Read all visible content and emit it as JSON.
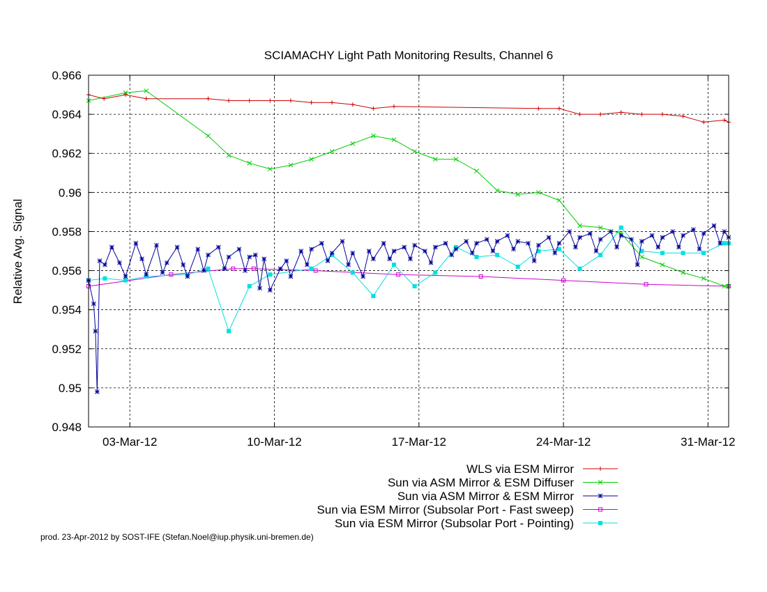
{
  "chart_data": {
    "type": "line",
    "title": "SCIAMACHY Light Path Monitoring Results, Channel 6",
    "ylabel": "Relative Avg. Signal",
    "xlabel": "",
    "xlim": [
      "2012-03-01T00:00",
      "2012-04-01T00:00"
    ],
    "ylim": [
      0.948,
      0.966
    ],
    "yticks": [
      0.948,
      0.95,
      0.952,
      0.954,
      0.956,
      0.958,
      0.96,
      0.962,
      0.964,
      0.966
    ],
    "ytick_labels": [
      "0.948",
      "0.95",
      "0.952",
      "0.954",
      "0.956",
      "0.958",
      "0.96",
      "0.962",
      "0.964",
      "0.966"
    ],
    "xticks": [
      "2012-03-03",
      "2012-03-10",
      "2012-03-17",
      "2012-03-24",
      "2012-03-31"
    ],
    "xtick_labels": [
      "03-Mar-12",
      "10-Mar-12",
      "17-Mar-12",
      "24-Mar-12",
      "31-Mar-12"
    ],
    "grid": true,
    "legend_position": "below plot, right-aligned",
    "series": [
      {
        "name": "WLS via ESM Mirror",
        "color": "#cc0000",
        "marker": "plus",
        "points": [
          [
            "2012-03-01T00:00",
            0.965
          ],
          [
            "2012-03-01T18:00",
            0.9648
          ],
          [
            "2012-03-02T19:00",
            0.965
          ],
          [
            "2012-03-03T19:00",
            0.9648
          ],
          [
            "2012-03-06T19:00",
            0.9648
          ],
          [
            "2012-03-07T19:00",
            0.9647
          ],
          [
            "2012-03-08T19:00",
            0.9647
          ],
          [
            "2012-03-09T19:00",
            0.9647
          ],
          [
            "2012-03-10T19:00",
            0.9647
          ],
          [
            "2012-03-11T19:00",
            0.9646
          ],
          [
            "2012-03-12T19:00",
            0.9646
          ],
          [
            "2012-03-13T19:00",
            0.9645
          ],
          [
            "2012-03-14T19:00",
            0.9643
          ],
          [
            "2012-03-15T19:00",
            0.9644
          ],
          [
            "2012-03-22T19:00",
            0.9643
          ],
          [
            "2012-03-23T19:00",
            0.9643
          ],
          [
            "2012-03-24T19:00",
            0.964
          ],
          [
            "2012-03-25T19:00",
            0.964
          ],
          [
            "2012-03-26T19:00",
            0.9641
          ],
          [
            "2012-03-27T19:00",
            0.964
          ],
          [
            "2012-03-28T19:00",
            0.964
          ],
          [
            "2012-03-29T19:00",
            0.9639
          ],
          [
            "2012-03-30T19:00",
            0.9636
          ],
          [
            "2012-03-31T19:00",
            0.9637
          ],
          [
            "2012-04-01T00:00",
            0.9636
          ]
        ]
      },
      {
        "name": "Sun via ASM Mirror & ESM Diffuser",
        "color": "#00cc00",
        "marker": "cross",
        "points": [
          [
            "2012-03-01T00:00",
            0.9647
          ],
          [
            "2012-03-02T19:00",
            0.9651
          ],
          [
            "2012-03-03T19:00",
            0.9652
          ],
          [
            "2012-03-06T19:00",
            0.9629
          ],
          [
            "2012-03-07T19:00",
            0.9619
          ],
          [
            "2012-03-08T19:00",
            0.9615
          ],
          [
            "2012-03-09T19:00",
            0.9612
          ],
          [
            "2012-03-10T19:00",
            0.9614
          ],
          [
            "2012-03-11T19:00",
            0.9617
          ],
          [
            "2012-03-12T19:00",
            0.9621
          ],
          [
            "2012-03-13T19:00",
            0.9625
          ],
          [
            "2012-03-14T19:00",
            0.9629
          ],
          [
            "2012-03-15T19:00",
            0.9627
          ],
          [
            "2012-03-16T19:00",
            0.9621
          ],
          [
            "2012-03-17T19:00",
            0.9617
          ],
          [
            "2012-03-18T19:00",
            0.9617
          ],
          [
            "2012-03-19T19:00",
            0.9611
          ],
          [
            "2012-03-20T19:00",
            0.9601
          ],
          [
            "2012-03-21T19:00",
            0.9599
          ],
          [
            "2012-03-22T19:00",
            0.96
          ],
          [
            "2012-03-23T19:00",
            0.9596
          ],
          [
            "2012-03-24T19:00",
            0.9583
          ],
          [
            "2012-03-25T19:00",
            0.9582
          ],
          [
            "2012-03-26T19:00",
            0.9579
          ],
          [
            "2012-03-27T19:00",
            0.9567
          ],
          [
            "2012-03-28T19:00",
            0.9563
          ],
          [
            "2012-03-29T19:00",
            0.9559
          ],
          [
            "2012-03-30T19:00",
            0.9556
          ],
          [
            "2012-03-31T19:00",
            0.9552
          ],
          [
            "2012-04-01T00:00",
            0.9552
          ]
        ]
      },
      {
        "name": "Sun via ASM Mirror & ESM Mirror",
        "color": "#000099",
        "marker": "star",
        "points": [
          [
            "2012-03-01T00:00",
            0.9555
          ],
          [
            "2012-03-01T06:00",
            0.9543
          ],
          [
            "2012-03-01T08:00",
            0.9529
          ],
          [
            "2012-03-01T10:00",
            0.9498
          ],
          [
            "2012-03-01T13:00",
            0.9565
          ],
          [
            "2012-03-01T19:00",
            0.9563
          ],
          [
            "2012-03-02T03:00",
            0.9572
          ],
          [
            "2012-03-02T12:00",
            0.9564
          ],
          [
            "2012-03-02T19:00",
            0.9557
          ],
          [
            "2012-03-03T07:00",
            0.9574
          ],
          [
            "2012-03-03T14:00",
            0.9566
          ],
          [
            "2012-03-03T19:00",
            0.9558
          ],
          [
            "2012-03-04T07:00",
            0.9573
          ],
          [
            "2012-03-04T14:00",
            0.9559
          ],
          [
            "2012-03-04T19:00",
            0.9564
          ],
          [
            "2012-03-05T07:00",
            0.9572
          ],
          [
            "2012-03-05T14:00",
            0.9563
          ],
          [
            "2012-03-05T19:00",
            0.9557
          ],
          [
            "2012-03-06T07:00",
            0.9571
          ],
          [
            "2012-03-06T14:00",
            0.956
          ],
          [
            "2012-03-06T19:00",
            0.9568
          ],
          [
            "2012-03-07T07:00",
            0.9572
          ],
          [
            "2012-03-07T14:00",
            0.9561
          ],
          [
            "2012-03-07T19:00",
            0.9567
          ],
          [
            "2012-03-08T07:00",
            0.9571
          ],
          [
            "2012-03-08T14:00",
            0.956
          ],
          [
            "2012-03-08T19:00",
            0.9567
          ],
          [
            "2012-03-09T02:00",
            0.9568
          ],
          [
            "2012-03-09T07:00",
            0.9551
          ],
          [
            "2012-03-09T12:00",
            0.9566
          ],
          [
            "2012-03-09T19:00",
            0.955
          ],
          [
            "2012-03-10T07:00",
            0.9561
          ],
          [
            "2012-03-10T14:00",
            0.9565
          ],
          [
            "2012-03-10T19:00",
            0.9557
          ],
          [
            "2012-03-11T07:00",
            0.957
          ],
          [
            "2012-03-11T14:00",
            0.9563
          ],
          [
            "2012-03-11T19:00",
            0.9571
          ],
          [
            "2012-03-12T07:00",
            0.9574
          ],
          [
            "2012-03-12T14:00",
            0.9565
          ],
          [
            "2012-03-12T19:00",
            0.9569
          ],
          [
            "2012-03-13T07:00",
            0.9575
          ],
          [
            "2012-03-13T14:00",
            0.9563
          ],
          [
            "2012-03-13T19:00",
            0.9569
          ],
          [
            "2012-03-14T07:00",
            0.9557
          ],
          [
            "2012-03-14T14:00",
            0.957
          ],
          [
            "2012-03-14T19:00",
            0.9566
          ],
          [
            "2012-03-15T07:00",
            0.9574
          ],
          [
            "2012-03-15T14:00",
            0.9566
          ],
          [
            "2012-03-15T19:00",
            0.957
          ],
          [
            "2012-03-16T07:00",
            0.9572
          ],
          [
            "2012-03-16T14:00",
            0.9566
          ],
          [
            "2012-03-16T19:00",
            0.9573
          ],
          [
            "2012-03-17T07:00",
            0.957
          ],
          [
            "2012-03-17T14:00",
            0.9564
          ],
          [
            "2012-03-17T19:00",
            0.9572
          ],
          [
            "2012-03-18T07:00",
            0.9574
          ],
          [
            "2012-03-18T14:00",
            0.9568
          ],
          [
            "2012-03-18T19:00",
            0.9571
          ],
          [
            "2012-03-19T07:00",
            0.9575
          ],
          [
            "2012-03-19T14:00",
            0.9569
          ],
          [
            "2012-03-19T19:00",
            0.9574
          ],
          [
            "2012-03-20T07:00",
            0.9576
          ],
          [
            "2012-03-20T14:00",
            0.957
          ],
          [
            "2012-03-20T19:00",
            0.9575
          ],
          [
            "2012-03-21T07:00",
            0.9578
          ],
          [
            "2012-03-21T14:00",
            0.9571
          ],
          [
            "2012-03-21T19:00",
            0.9575
          ],
          [
            "2012-03-22T07:00",
            0.9574
          ],
          [
            "2012-03-22T14:00",
            0.9565
          ],
          [
            "2012-03-22T19:00",
            0.9573
          ],
          [
            "2012-03-23T07:00",
            0.9577
          ],
          [
            "2012-03-23T14:00",
            0.9569
          ],
          [
            "2012-03-23T19:00",
            0.9574
          ],
          [
            "2012-03-24T07:00",
            0.958
          ],
          [
            "2012-03-24T14:00",
            0.9572
          ],
          [
            "2012-03-24T19:00",
            0.9577
          ],
          [
            "2012-03-25T07:00",
            0.9579
          ],
          [
            "2012-03-25T14:00",
            0.957
          ],
          [
            "2012-03-25T19:00",
            0.9576
          ],
          [
            "2012-03-26T07:00",
            0.958
          ],
          [
            "2012-03-26T14:00",
            0.9572
          ],
          [
            "2012-03-26T19:00",
            0.9578
          ],
          [
            "2012-03-27T07:00",
            0.9576
          ],
          [
            "2012-03-27T14:00",
            0.9563
          ],
          [
            "2012-03-27T19:00",
            0.9575
          ],
          [
            "2012-03-28T07:00",
            0.9578
          ],
          [
            "2012-03-28T14:00",
            0.9572
          ],
          [
            "2012-03-28T19:00",
            0.9577
          ],
          [
            "2012-03-29T07:00",
            0.958
          ],
          [
            "2012-03-29T14:00",
            0.9572
          ],
          [
            "2012-03-29T19:00",
            0.9578
          ],
          [
            "2012-03-30T07:00",
            0.9581
          ],
          [
            "2012-03-30T14:00",
            0.9571
          ],
          [
            "2012-03-30T19:00",
            0.9579
          ],
          [
            "2012-03-31T07:00",
            0.9583
          ],
          [
            "2012-03-31T14:00",
            0.9574
          ],
          [
            "2012-03-31T19:00",
            0.958
          ],
          [
            "2012-04-01T00:00",
            0.9577
          ]
        ]
      },
      {
        "name": "Sun via ESM Mirror (Subsolar Port - Fast sweep)",
        "color": "#cc00cc",
        "marker": "open-square",
        "points": [
          [
            "2012-03-01T00:00",
            0.9552
          ],
          [
            "2012-03-05T00:00",
            0.9558
          ],
          [
            "2012-03-08T00:00",
            0.9561
          ],
          [
            "2012-03-09T00:00",
            0.9561
          ],
          [
            "2012-03-12T00:00",
            0.956
          ],
          [
            "2012-03-16T00:00",
            0.9558
          ],
          [
            "2012-03-20T00:00",
            0.9557
          ],
          [
            "2012-03-24T00:00",
            0.9555
          ],
          [
            "2012-03-28T00:00",
            0.9553
          ],
          [
            "2012-04-01T00:00",
            0.9552
          ]
        ]
      },
      {
        "name": "Sun via ESM Mirror (Subsolar Port - Pointing)",
        "color": "#00e0e0",
        "marker": "filled-square",
        "points": [
          [
            "2012-03-01T00:00",
            0.9555
          ],
          [
            "2012-03-01T19:00",
            0.9556
          ],
          [
            "2012-03-02T19:00",
            0.9555
          ],
          [
            "2012-03-03T19:00",
            0.9557
          ],
          [
            "2012-03-05T19:00",
            0.9558
          ],
          [
            "2012-03-06T19:00",
            0.9561
          ],
          [
            "2012-03-07T19:00",
            0.9529
          ],
          [
            "2012-03-08T19:00",
            0.9552
          ],
          [
            "2012-03-09T19:00",
            0.9558
          ],
          [
            "2012-03-11T19:00",
            0.9561
          ],
          [
            "2012-03-12T19:00",
            0.9568
          ],
          [
            "2012-03-13T19:00",
            0.9559
          ],
          [
            "2012-03-14T19:00",
            0.9547
          ],
          [
            "2012-03-15T19:00",
            0.9563
          ],
          [
            "2012-03-16T19:00",
            0.9552
          ],
          [
            "2012-03-17T19:00",
            0.9559
          ],
          [
            "2012-03-18T19:00",
            0.9572
          ],
          [
            "2012-03-19T19:00",
            0.9567
          ],
          [
            "2012-03-20T19:00",
            0.9568
          ],
          [
            "2012-03-21T19:00",
            0.9562
          ],
          [
            "2012-03-22T19:00",
            0.957
          ],
          [
            "2012-03-23T19:00",
            0.9571
          ],
          [
            "2012-03-24T19:00",
            0.9561
          ],
          [
            "2012-03-25T19:00",
            0.9568
          ],
          [
            "2012-03-26T19:00",
            0.9582
          ],
          [
            "2012-03-27T19:00",
            0.957
          ],
          [
            "2012-03-28T19:00",
            0.9569
          ],
          [
            "2012-03-29T19:00",
            0.9569
          ],
          [
            "2012-03-30T19:00",
            0.9569
          ],
          [
            "2012-03-31T19:00",
            0.9574
          ],
          [
            "2012-04-01T00:00",
            0.9574
          ]
        ]
      }
    ]
  },
  "footer": "prod. 23-Apr-2012 by SOST-IFE (Stefan.Noel@iup.physik.uni-bremen.de)"
}
